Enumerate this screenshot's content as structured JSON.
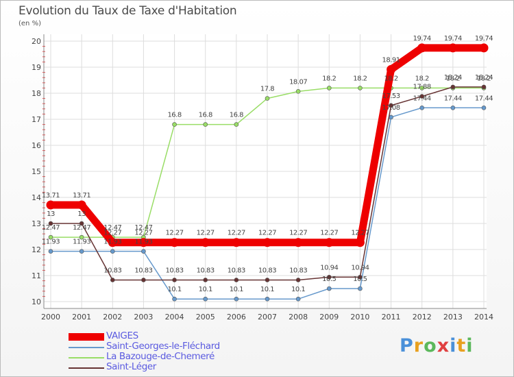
{
  "title": "Evolution du Taux de Taxe d'Habitation",
  "unit": "(en %)",
  "logo": {
    "text": "Proxiti"
  },
  "chart_data": {
    "type": "line",
    "title": "Evolution du Taux de Taxe d'Habitation",
    "ylabel": "(en %)",
    "xlabel": "",
    "x": [
      "2000",
      "2001",
      "2002",
      "2003",
      "2004",
      "2005",
      "2006",
      "2007",
      "2008",
      "2009",
      "2010",
      "2011",
      "2012",
      "2013",
      "2014"
    ],
    "ylim": [
      10,
      20
    ],
    "yticks": [
      10,
      11,
      12,
      13,
      14,
      15,
      16,
      17,
      18,
      19,
      20
    ],
    "yticks_labels": [
      "10",
      "11",
      "12",
      "13",
      "14",
      "15",
      "16",
      "17",
      "18",
      "19",
      "20"
    ],
    "grid": true,
    "legend_position": "bottom-left",
    "series": [
      {
        "name": "VAIGES",
        "color": "#ee0000",
        "values": [
          13.71,
          13.71,
          12.27,
          12.27,
          12.27,
          12.27,
          12.27,
          12.27,
          12.27,
          12.27,
          12.27,
          18.91,
          19.74,
          19.74,
          19.74
        ],
        "labels": [
          "13.71",
          "13.71",
          "12.27",
          "12.27",
          "12.27",
          "12.27",
          "12.27",
          "12.27",
          "12.27",
          "12.27",
          "12.27",
          "18.91",
          "19.74",
          "19.74",
          "19.74"
        ]
      },
      {
        "name": "Saint-Georges-le-Fléchard",
        "color": "#6699cc",
        "values": [
          11.93,
          11.93,
          11.93,
          11.93,
          10.1,
          10.1,
          10.1,
          10.1,
          10.1,
          10.5,
          10.5,
          17.08,
          17.44,
          17.44,
          17.44
        ],
        "labels": [
          "11.93",
          "11.93",
          "11.93",
          "11.93",
          "10.1",
          "10.1",
          "10.1",
          "10.1",
          "10.1",
          "10.5",
          "10.5",
          "17.08",
          "17.44",
          "17.44",
          "17.44"
        ]
      },
      {
        "name": "La Bazouge-de-Chemeré",
        "color": "#99dd66",
        "values": [
          12.47,
          12.47,
          12.47,
          12.47,
          16.8,
          16.8,
          16.8,
          17.8,
          18.07,
          18.2,
          18.2,
          18.2,
          18.2,
          18.2,
          18.2
        ],
        "labels": [
          "12.47",
          "12.47",
          "12.47",
          "12.47",
          "16.8",
          "16.8",
          "16.8",
          "17.8",
          "18.07",
          "18.2",
          "18.2",
          "18.2",
          "18.2",
          "18.2",
          "18.2"
        ]
      },
      {
        "name": "Saint-Léger",
        "color": "#663333",
        "values": [
          13,
          13,
          10.83,
          10.83,
          10.83,
          10.83,
          10.83,
          10.83,
          10.83,
          10.94,
          10.94,
          17.53,
          17.88,
          18.24,
          18.24
        ],
        "labels": [
          "13",
          "13",
          "10.83",
          "10.83",
          "10.83",
          "10.83",
          "10.83",
          "10.83",
          "10.83",
          "10.94",
          "10.94",
          "17.53",
          "17.88",
          "18.24",
          "18.24"
        ]
      }
    ]
  }
}
